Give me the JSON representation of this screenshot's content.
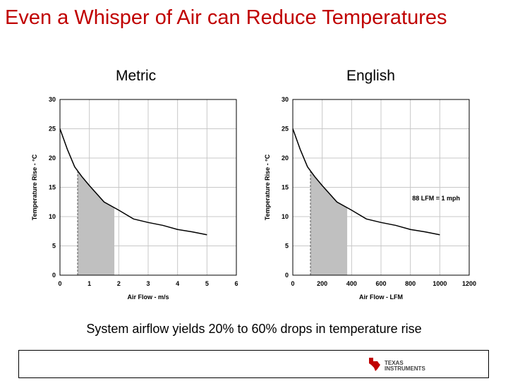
{
  "slide": {
    "title": "Even a Whisper of Air can Reduce Temperatures",
    "caption": "System airflow yields 20% to 60% drops in temperature rise",
    "logo": {
      "line1": "TEXAS",
      "line2": "INSTRUMENTS"
    }
  },
  "colors": {
    "title": "#c00000",
    "shade": "#c0c0c0",
    "grid": "#c8c8c8",
    "curve": "#000000"
  },
  "chart_data": [
    {
      "type": "line",
      "title": "Metric",
      "xlabel": "Air Flow - m/s",
      "ylabel": "Temperature Rise - °C",
      "xlim": [
        0,
        6
      ],
      "ylim": [
        0,
        30
      ],
      "xticks": [
        "0",
        "1",
        "2",
        "3",
        "4",
        "5",
        "6"
      ],
      "yticks": [
        "0",
        "5",
        "10",
        "15",
        "20",
        "25",
        "30"
      ],
      "x": [
        0,
        0.25,
        0.5,
        0.75,
        1,
        1.5,
        2,
        2.5,
        3,
        3.5,
        4,
        4.5,
        5
      ],
      "y": [
        25,
        21.5,
        18.5,
        16.8,
        15.3,
        12.5,
        11.1,
        9.6,
        9.0,
        8.5,
        7.8,
        7.4,
        6.9
      ],
      "shaded_range": [
        0.6,
        1.85
      ],
      "grid": true,
      "annotation": ""
    },
    {
      "type": "line",
      "title": "English",
      "xlabel": "Air Flow - LFM",
      "ylabel": "Temperature Rise - °C",
      "xlim": [
        0,
        1200
      ],
      "ylim": [
        0,
        30
      ],
      "xticks": [
        "0",
        "200",
        "400",
        "600",
        "800",
        "1000",
        "1200"
      ],
      "yticks": [
        "0",
        "5",
        "10",
        "15",
        "20",
        "25",
        "30"
      ],
      "x": [
        0,
        50,
        100,
        150,
        200,
        300,
        400,
        500,
        600,
        700,
        800,
        900,
        1000
      ],
      "y": [
        25,
        21.5,
        18.5,
        16.8,
        15.3,
        12.5,
        11.1,
        9.6,
        9.0,
        8.5,
        7.8,
        7.4,
        6.9
      ],
      "shaded_range": [
        120,
        370
      ],
      "grid": true,
      "annotation": "88 LFM = 1 mph"
    }
  ]
}
